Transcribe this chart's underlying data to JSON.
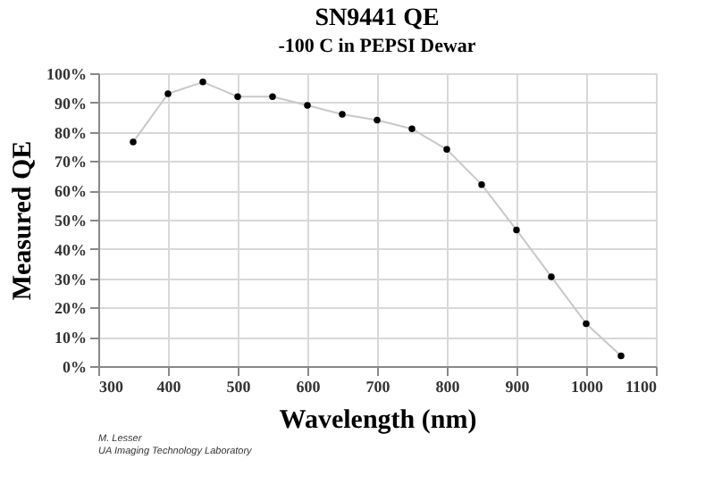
{
  "chart_data": {
    "type": "line",
    "title": "SN9441 QE",
    "subtitle": "-100 C in PEPSI Dewar",
    "xlabel": "Wavelength (nm)",
    "ylabel": "Measured QE",
    "x": [
      350,
      400,
      450,
      500,
      550,
      600,
      650,
      700,
      750,
      800,
      850,
      900,
      950,
      1000,
      1050
    ],
    "series": [
      {
        "color": "#000000",
        "values": [
          76.5,
          93,
          97,
          92,
          92,
          89,
          86,
          84,
          81,
          74,
          62,
          46.5,
          30.5,
          14.5,
          3.5
        ]
      }
    ],
    "xlim": [
      300,
      1100
    ],
    "xticks": [
      300,
      400,
      500,
      600,
      700,
      800,
      900,
      1000,
      1100
    ],
    "ylim": [
      0,
      100
    ],
    "yticks": [
      {
        "value": 0,
        "label": "0%"
      },
      {
        "value": 10,
        "label": "10%"
      },
      {
        "value": 20,
        "label": "20%"
      },
      {
        "value": 30,
        "label": "30%"
      },
      {
        "value": 40,
        "label": "40%"
      },
      {
        "value": 50,
        "label": "50%"
      },
      {
        "value": 60,
        "label": "60%"
      },
      {
        "value": 70,
        "label": "70%"
      },
      {
        "value": 80,
        "label": "80%"
      },
      {
        "value": 90,
        "label": "90%"
      },
      {
        "value": 100,
        "label": "100%"
      }
    ],
    "grid": true,
    "marker": "circle",
    "line_style": "solid",
    "annotations": [
      "M. Lesser",
      "UA Imaging Technology Laboratory"
    ]
  }
}
